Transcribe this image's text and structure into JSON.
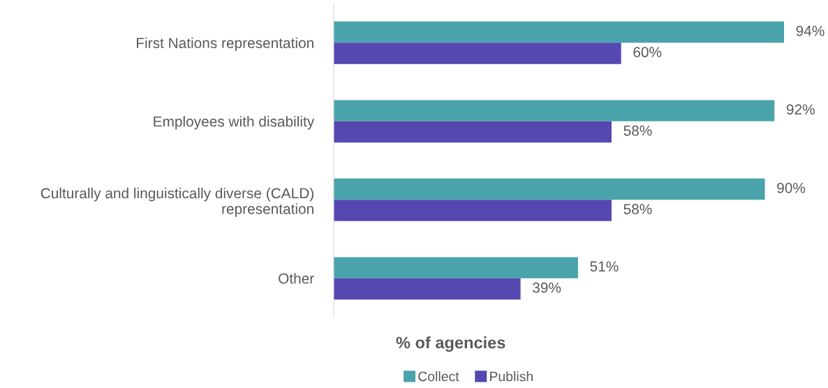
{
  "chart_data": {
    "type": "bar",
    "orientation": "horizontal",
    "xlabel": "% of agencies",
    "categories": [
      "First Nations representation",
      "Employees with disability",
      "Culturally and linguistically diverse (CALD)\nrepresentation",
      "Other"
    ],
    "series": [
      {
        "name": "Collect",
        "color": "#4aa3aa",
        "values": [
          94,
          92,
          90,
          51
        ],
        "value_labels": [
          "94%",
          "92%",
          "90%",
          "51%"
        ]
      },
      {
        "name": "Publish",
        "color": "#5548b0",
        "values": [
          60,
          58,
          58,
          39
        ],
        "value_labels": [
          "60%",
          "58%",
          "58%",
          "39%"
        ]
      }
    ],
    "legend": "bottom",
    "tick_labels": "y"
  }
}
